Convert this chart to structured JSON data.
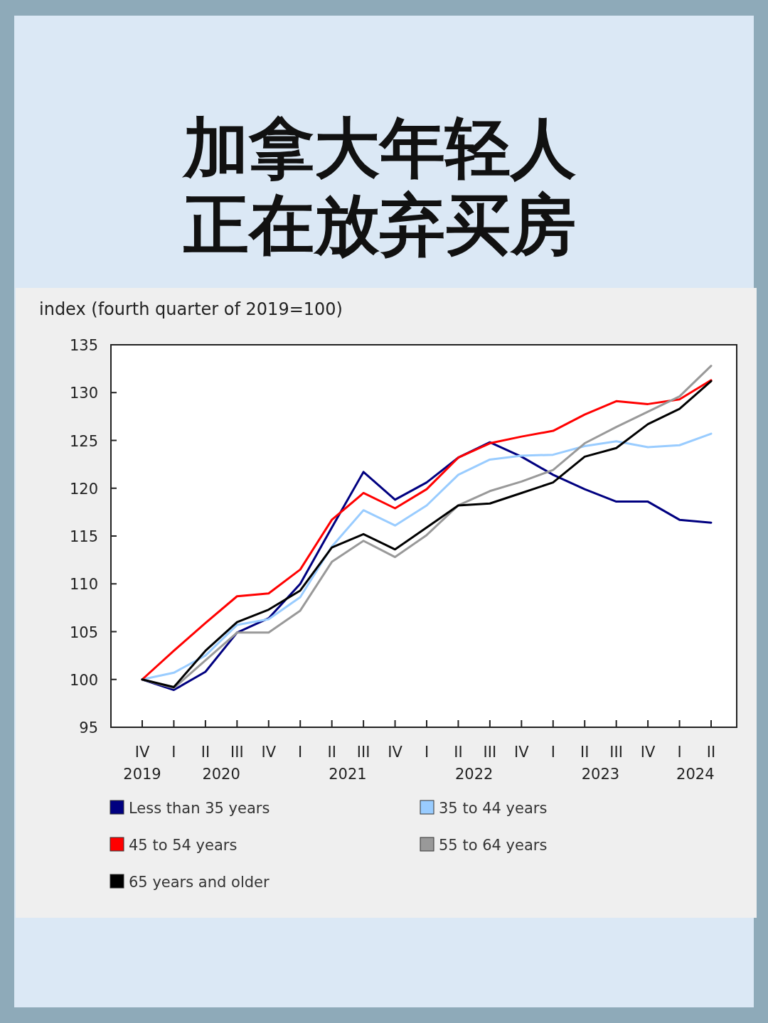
{
  "chart_data": {
    "type": "line",
    "title": "加拿大年轻人正在放弃买房",
    "ylabel": "index (fourth quarter of 2019=100)",
    "categories": [
      "IV",
      "I",
      "II",
      "III",
      "IV",
      "I",
      "II",
      "III",
      "IV",
      "I",
      "II",
      "III",
      "IV",
      "I",
      "II",
      "III",
      "IV",
      "I",
      "II"
    ],
    "annotations": [
      "2019",
      "2020",
      "2021",
      "2022",
      "2023",
      "2024"
    ],
    "ylim": [
      95,
      135
    ],
    "yticks": [
      95,
      100,
      105,
      110,
      115,
      120,
      125,
      130,
      135
    ],
    "grid": false,
    "legend": "bottom",
    "marker": "none",
    "line_style": "solid",
    "series": [
      {
        "name": "Less than 35 years",
        "color": "#000080",
        "values": [
          100,
          98.9,
          100.8,
          104.9,
          106.4,
          110.0,
          115.9,
          121.7,
          118.8,
          120.6,
          123.2,
          124.8,
          123.3,
          121.4,
          119.9,
          118.6,
          118.6,
          116.7,
          116.4
        ]
      },
      {
        "name": "35 to 44 years",
        "color": "#99ccff",
        "values": [
          100,
          100.7,
          102.5,
          105.7,
          106.3,
          108.6,
          113.9,
          117.7,
          116.1,
          118.2,
          121.4,
          123.0,
          123.4,
          123.5,
          124.4,
          124.9,
          124.3,
          124.5,
          125.7
        ]
      },
      {
        "name": "45 to 54 years",
        "color": "#ff0000",
        "values": [
          100,
          103.0,
          105.9,
          108.7,
          109.0,
          111.5,
          116.7,
          119.5,
          117.9,
          119.9,
          123.2,
          124.7,
          125.4,
          126.0,
          127.7,
          129.1,
          128.8,
          129.3,
          131.3
        ]
      },
      {
        "name": "55 to 64 years",
        "color": "#999999",
        "values": [
          100,
          99.1,
          102.0,
          104.9,
          104.9,
          107.2,
          112.3,
          114.5,
          112.8,
          115.1,
          118.2,
          119.7,
          120.7,
          121.9,
          124.7,
          126.4,
          128.0,
          129.6,
          132.8
        ]
      },
      {
        "name": "65 years and older",
        "color": "#000000",
        "values": [
          100,
          99.2,
          103.0,
          106.0,
          107.3,
          109.3,
          113.8,
          115.2,
          113.6,
          115.9,
          118.2,
          118.4,
          119.5,
          120.6,
          123.3,
          124.2,
          126.7,
          128.3,
          131.2
        ]
      }
    ]
  }
}
